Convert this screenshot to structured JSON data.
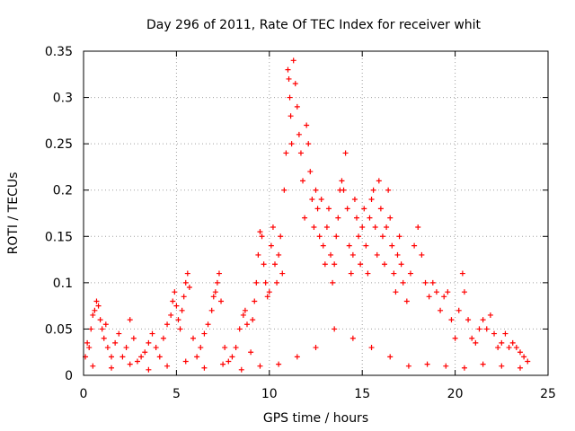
{
  "chart_data": {
    "type": "scatter",
    "title": "Day 296 of 2011, Rate Of TEC Index for receiver whit",
    "xlabel": "GPS time / hours",
    "ylabel": "ROTI / TECUs",
    "xlim": [
      0,
      25
    ],
    "ylim": [
      0,
      0.35
    ],
    "x_ticks": [
      0,
      5,
      10,
      15,
      20,
      25
    ],
    "x_tick_labels": [
      "0",
      "5",
      "10",
      "15",
      "20",
      "25"
    ],
    "y_ticks": [
      0,
      0.05,
      0.1,
      0.15,
      0.2,
      0.25,
      0.3,
      0.35
    ],
    "y_tick_labels": [
      "0",
      "0.05",
      "0.1",
      "0.15",
      "0.2",
      "0.25",
      "0.3",
      "0.35"
    ],
    "grid": true,
    "marker": "plus",
    "color": "#ff0000",
    "series": [
      {
        "points": [
          [
            0.1,
            0.02
          ],
          [
            0.2,
            0.035
          ],
          [
            0.3,
            0.03
          ],
          [
            0.4,
            0.05
          ],
          [
            0.5,
            0.065
          ],
          [
            0.6,
            0.07
          ],
          [
            0.7,
            0.08
          ],
          [
            0.8,
            0.075
          ],
          [
            0.9,
            0.06
          ],
          [
            1.0,
            0.05
          ],
          [
            1.1,
            0.04
          ],
          [
            1.2,
            0.055
          ],
          [
            1.3,
            0.03
          ],
          [
            1.5,
            0.02
          ],
          [
            1.7,
            0.035
          ],
          [
            1.9,
            0.045
          ],
          [
            2.1,
            0.02
          ],
          [
            2.3,
            0.03
          ],
          [
            2.5,
            0.06
          ],
          [
            2.7,
            0.04
          ],
          [
            2.9,
            0.015
          ],
          [
            3.1,
            0.02
          ],
          [
            3.3,
            0.025
          ],
          [
            3.5,
            0.035
          ],
          [
            3.7,
            0.045
          ],
          [
            3.9,
            0.03
          ],
          [
            4.1,
            0.02
          ],
          [
            4.3,
            0.04
          ],
          [
            4.5,
            0.055
          ],
          [
            4.7,
            0.065
          ],
          [
            4.8,
            0.08
          ],
          [
            4.9,
            0.09
          ],
          [
            5.0,
            0.075
          ],
          [
            5.1,
            0.06
          ],
          [
            5.2,
            0.05
          ],
          [
            5.3,
            0.07
          ],
          [
            5.4,
            0.085
          ],
          [
            5.5,
            0.1
          ],
          [
            5.6,
            0.11
          ],
          [
            5.7,
            0.095
          ],
          [
            5.9,
            0.04
          ],
          [
            6.1,
            0.02
          ],
          [
            6.3,
            0.03
          ],
          [
            6.5,
            0.045
          ],
          [
            6.7,
            0.055
          ],
          [
            6.9,
            0.07
          ],
          [
            7.0,
            0.085
          ],
          [
            7.1,
            0.09
          ],
          [
            7.2,
            0.1
          ],
          [
            7.3,
            0.11
          ],
          [
            7.4,
            0.08
          ],
          [
            7.6,
            0.03
          ],
          [
            7.8,
            0.015
          ],
          [
            8.0,
            0.02
          ],
          [
            8.2,
            0.03
          ],
          [
            8.4,
            0.05
          ],
          [
            8.6,
            0.065
          ],
          [
            8.7,
            0.07
          ],
          [
            8.8,
            0.055
          ],
          [
            9.0,
            0.025
          ],
          [
            9.1,
            0.06
          ],
          [
            9.2,
            0.08
          ],
          [
            9.3,
            0.1
          ],
          [
            9.4,
            0.13
          ],
          [
            9.5,
            0.155
          ],
          [
            9.6,
            0.15
          ],
          [
            9.7,
            0.12
          ],
          [
            9.8,
            0.1
          ],
          [
            9.9,
            0.085
          ],
          [
            10.0,
            0.09
          ],
          [
            10.1,
            0.14
          ],
          [
            10.2,
            0.16
          ],
          [
            10.3,
            0.12
          ],
          [
            10.4,
            0.1
          ],
          [
            10.5,
            0.13
          ],
          [
            10.6,
            0.15
          ],
          [
            10.7,
            0.11
          ],
          [
            10.8,
            0.2
          ],
          [
            10.9,
            0.24
          ],
          [
            11.0,
            0.33
          ],
          [
            11.05,
            0.32
          ],
          [
            11.1,
            0.3
          ],
          [
            11.15,
            0.28
          ],
          [
            11.2,
            0.25
          ],
          [
            11.3,
            0.34
          ],
          [
            11.4,
            0.315
          ],
          [
            11.5,
            0.29
          ],
          [
            11.6,
            0.26
          ],
          [
            11.7,
            0.24
          ],
          [
            11.8,
            0.21
          ],
          [
            11.9,
            0.17
          ],
          [
            12.0,
            0.27
          ],
          [
            12.1,
            0.25
          ],
          [
            12.2,
            0.22
          ],
          [
            12.3,
            0.19
          ],
          [
            12.4,
            0.16
          ],
          [
            12.5,
            0.2
          ],
          [
            12.6,
            0.18
          ],
          [
            12.7,
            0.15
          ],
          [
            12.8,
            0.19
          ],
          [
            12.9,
            0.14
          ],
          [
            13.0,
            0.12
          ],
          [
            13.1,
            0.16
          ],
          [
            13.2,
            0.18
          ],
          [
            13.3,
            0.13
          ],
          [
            13.4,
            0.1
          ],
          [
            13.5,
            0.12
          ],
          [
            13.6,
            0.15
          ],
          [
            13.7,
            0.17
          ],
          [
            13.8,
            0.2
          ],
          [
            13.9,
            0.21
          ],
          [
            14.0,
            0.2
          ],
          [
            14.1,
            0.24
          ],
          [
            14.2,
            0.18
          ],
          [
            14.3,
            0.14
          ],
          [
            14.4,
            0.11
          ],
          [
            14.5,
            0.13
          ],
          [
            14.6,
            0.19
          ],
          [
            14.7,
            0.17
          ],
          [
            14.8,
            0.15
          ],
          [
            14.9,
            0.12
          ],
          [
            15.0,
            0.16
          ],
          [
            15.1,
            0.18
          ],
          [
            15.2,
            0.14
          ],
          [
            15.3,
            0.11
          ],
          [
            15.4,
            0.17
          ],
          [
            15.5,
            0.19
          ],
          [
            15.6,
            0.2
          ],
          [
            15.7,
            0.16
          ],
          [
            15.8,
            0.13
          ],
          [
            15.9,
            0.21
          ],
          [
            16.0,
            0.18
          ],
          [
            16.1,
            0.15
          ],
          [
            16.2,
            0.12
          ],
          [
            16.3,
            0.16
          ],
          [
            16.4,
            0.2
          ],
          [
            16.5,
            0.17
          ],
          [
            16.6,
            0.14
          ],
          [
            16.7,
            0.11
          ],
          [
            16.8,
            0.09
          ],
          [
            16.9,
            0.13
          ],
          [
            17.0,
            0.15
          ],
          [
            17.1,
            0.12
          ],
          [
            17.2,
            0.1
          ],
          [
            17.4,
            0.08
          ],
          [
            17.6,
            0.11
          ],
          [
            17.8,
            0.14
          ],
          [
            18.0,
            0.16
          ],
          [
            18.2,
            0.13
          ],
          [
            18.4,
            0.1
          ],
          [
            18.6,
            0.085
          ],
          [
            18.8,
            0.1
          ],
          [
            19.0,
            0.09
          ],
          [
            19.2,
            0.07
          ],
          [
            19.4,
            0.085
          ],
          [
            19.6,
            0.09
          ],
          [
            19.8,
            0.06
          ],
          [
            20.0,
            0.04
          ],
          [
            20.2,
            0.07
          ],
          [
            20.4,
            0.11
          ],
          [
            20.5,
            0.09
          ],
          [
            20.7,
            0.06
          ],
          [
            20.9,
            0.04
          ],
          [
            21.1,
            0.035
          ],
          [
            21.3,
            0.05
          ],
          [
            21.5,
            0.06
          ],
          [
            21.7,
            0.05
          ],
          [
            21.9,
            0.065
          ],
          [
            22.1,
            0.045
          ],
          [
            22.3,
            0.03
          ],
          [
            22.5,
            0.035
          ],
          [
            22.7,
            0.045
          ],
          [
            22.9,
            0.03
          ],
          [
            23.1,
            0.035
          ],
          [
            23.3,
            0.03
          ],
          [
            23.5,
            0.025
          ],
          [
            23.7,
            0.02
          ],
          [
            23.9,
            0.015
          ],
          [
            0.5,
            0.01
          ],
          [
            1.5,
            0.008
          ],
          [
            2.5,
            0.012
          ],
          [
            3.5,
            0.006
          ],
          [
            4.5,
            0.01
          ],
          [
            5.5,
            0.015
          ],
          [
            6.5,
            0.008
          ],
          [
            7.5,
            0.012
          ],
          [
            8.5,
            0.006
          ],
          [
            9.5,
            0.01
          ],
          [
            10.5,
            0.012
          ],
          [
            11.5,
            0.02
          ],
          [
            12.5,
            0.03
          ],
          [
            13.5,
            0.05
          ],
          [
            14.5,
            0.04
          ],
          [
            15.5,
            0.03
          ],
          [
            16.5,
            0.02
          ],
          [
            17.5,
            0.01
          ],
          [
            18.5,
            0.012
          ],
          [
            19.5,
            0.01
          ],
          [
            20.5,
            0.008
          ],
          [
            21.5,
            0.012
          ],
          [
            22.5,
            0.01
          ],
          [
            23.5,
            0.008
          ]
        ]
      }
    ]
  }
}
